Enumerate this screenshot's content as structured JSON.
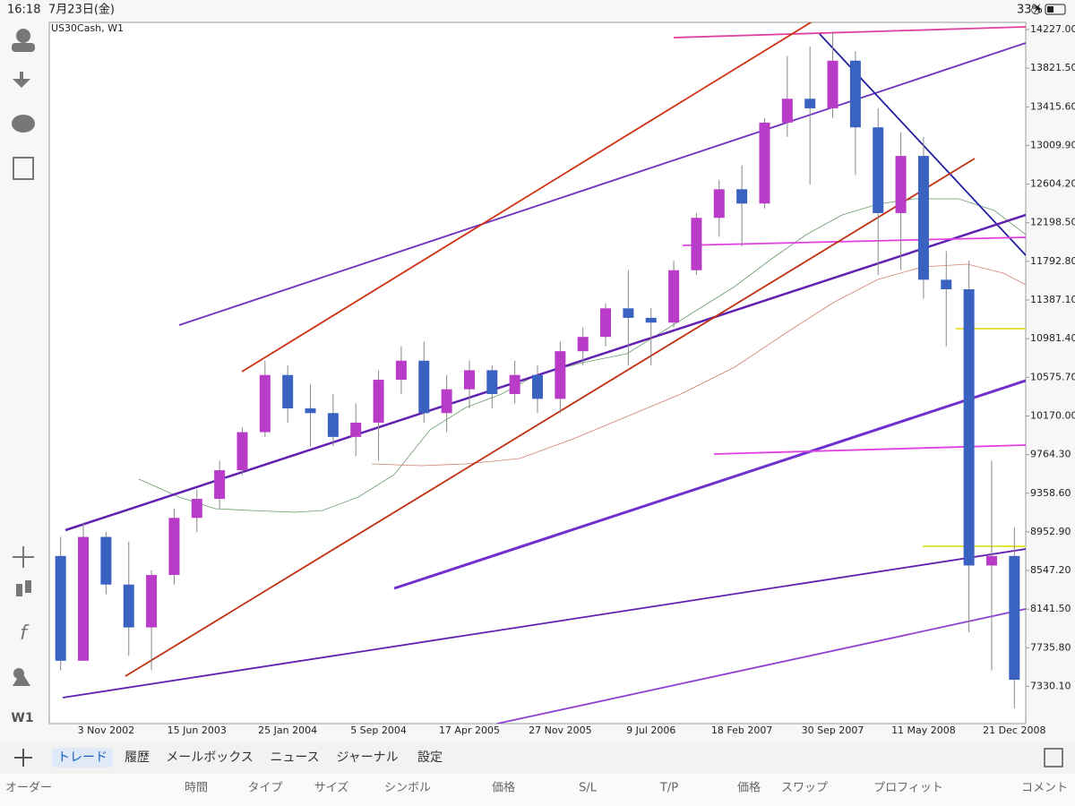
{
  "status_bar": {
    "time": "16:18",
    "date": "7月23日(金)",
    "battery": "33%"
  },
  "chart_data": {
    "type": "candlestick",
    "title": "US30Cash, W1",
    "categories": [
      null,
      null,
      "3 Nov 2002",
      null,
      null,
      null,
      "15 Jun 2003",
      null,
      null,
      null,
      "25 Jan 2004",
      null,
      null,
      null,
      "5 Sep 2004",
      null,
      null,
      null,
      "17 Apr 2005",
      null,
      null,
      null,
      "27 Nov 2005",
      null,
      null,
      null,
      "9 Jul 2006",
      null,
      null,
      null,
      "18 Feb 2007",
      null,
      null,
      null,
      "30 Sep 2007",
      null,
      null,
      null,
      "11 May 2008",
      null,
      null,
      null,
      "21 Dec 2008"
    ],
    "open": [
      8700,
      7600,
      8900,
      8400,
      7950,
      8500,
      9100,
      9300,
      9600,
      10000,
      10600,
      10250,
      10200,
      9950,
      10100,
      10550,
      10750,
      10200,
      10450,
      10650,
      10400,
      10600,
      10350,
      10850,
      11000,
      11300,
      11200,
      11150,
      11700,
      12250,
      12550,
      12400,
      13250,
      13500,
      13400,
      13900,
      13200,
      12300,
      12900,
      11600,
      11500,
      8600,
      8700
    ],
    "high": [
      8900,
      9050,
      8950,
      8850,
      8550,
      9200,
      9400,
      9700,
      10050,
      10750,
      10700,
      10500,
      10400,
      10300,
      10650,
      10900,
      10950,
      10600,
      10750,
      10700,
      10750,
      10700,
      10950,
      11100,
      11350,
      11700,
      11300,
      11800,
      12300,
      12650,
      12800,
      13300,
      13950,
      14050,
      14200,
      14000,
      13400,
      13150,
      13100,
      11900,
      11800,
      9700,
      9000
    ],
    "low": [
      7500,
      7600,
      8300,
      7650,
      7500,
      8400,
      8950,
      9200,
      9550,
      9950,
      10100,
      9850,
      9850,
      9750,
      9700,
      10400,
      10100,
      10000,
      10250,
      10250,
      10300,
      10200,
      10200,
      10700,
      10900,
      10700,
      10700,
      11100,
      11650,
      12050,
      11950,
      12350,
      13100,
      12600,
      13300,
      12700,
      11650,
      11700,
      11400,
      10900,
      7900,
      7500,
      7100
    ],
    "close": [
      7600,
      8900,
      8400,
      7950,
      8500,
      9100,
      9300,
      9600,
      10000,
      10600,
      10250,
      10200,
      9950,
      10100,
      10550,
      10750,
      10200,
      10450,
      10650,
      10400,
      10600,
      10350,
      10850,
      11000,
      11300,
      11200,
      11150,
      11700,
      12250,
      12550,
      12400,
      13250,
      13500,
      13400,
      13900,
      13200,
      12300,
      12900,
      11600,
      11500,
      8600,
      8700,
      7400
    ],
    "up_color": "#b83cc8",
    "down_color": "#3a62c0",
    "ylim": [
      6940,
      14302
    ],
    "yticks": [
      {
        "value": 14227,
        "label": "14227.00"
      },
      {
        "value": 13821.5,
        "label": "13821.50"
      },
      {
        "value": 13415.6,
        "label": "13415.60"
      },
      {
        "value": 13009.9,
        "label": "13009.90"
      },
      {
        "value": 12604.2,
        "label": "12604.20"
      },
      {
        "value": 12198.5,
        "label": "12198.50"
      },
      {
        "value": 11792.8,
        "label": "11792.80"
      },
      {
        "value": 11387.1,
        "label": "11387.10"
      },
      {
        "value": 10981.4,
        "label": "10981.40"
      },
      {
        "value": 10575.7,
        "label": "10575.70"
      },
      {
        "value": 10170,
        "label": "10170.00"
      },
      {
        "value": 9764.3,
        "label": "9764.30"
      },
      {
        "value": 9358.6,
        "label": "9358.60"
      },
      {
        "value": 8952.9,
        "label": "8952.90"
      },
      {
        "value": 8547.2,
        "label": "8547.20"
      },
      {
        "value": 8141.5,
        "label": "8141.50"
      },
      {
        "value": 7735.8,
        "label": "7735.80"
      },
      {
        "value": 7330.1,
        "label": "7330.10"
      }
    ]
  },
  "toolbar": {
    "timeframe": "W1"
  },
  "tabs": [
    "トレード",
    "履歴",
    "メールボックス",
    "ニュース",
    "ジャーナル",
    "設定"
  ],
  "columns": [
    "オーダー",
    "時間",
    "タイプ",
    "サイズ",
    "シンボル",
    "価格",
    "S/L",
    "T/P",
    "価格",
    "スワップ",
    "プロフィット",
    "コメント"
  ]
}
